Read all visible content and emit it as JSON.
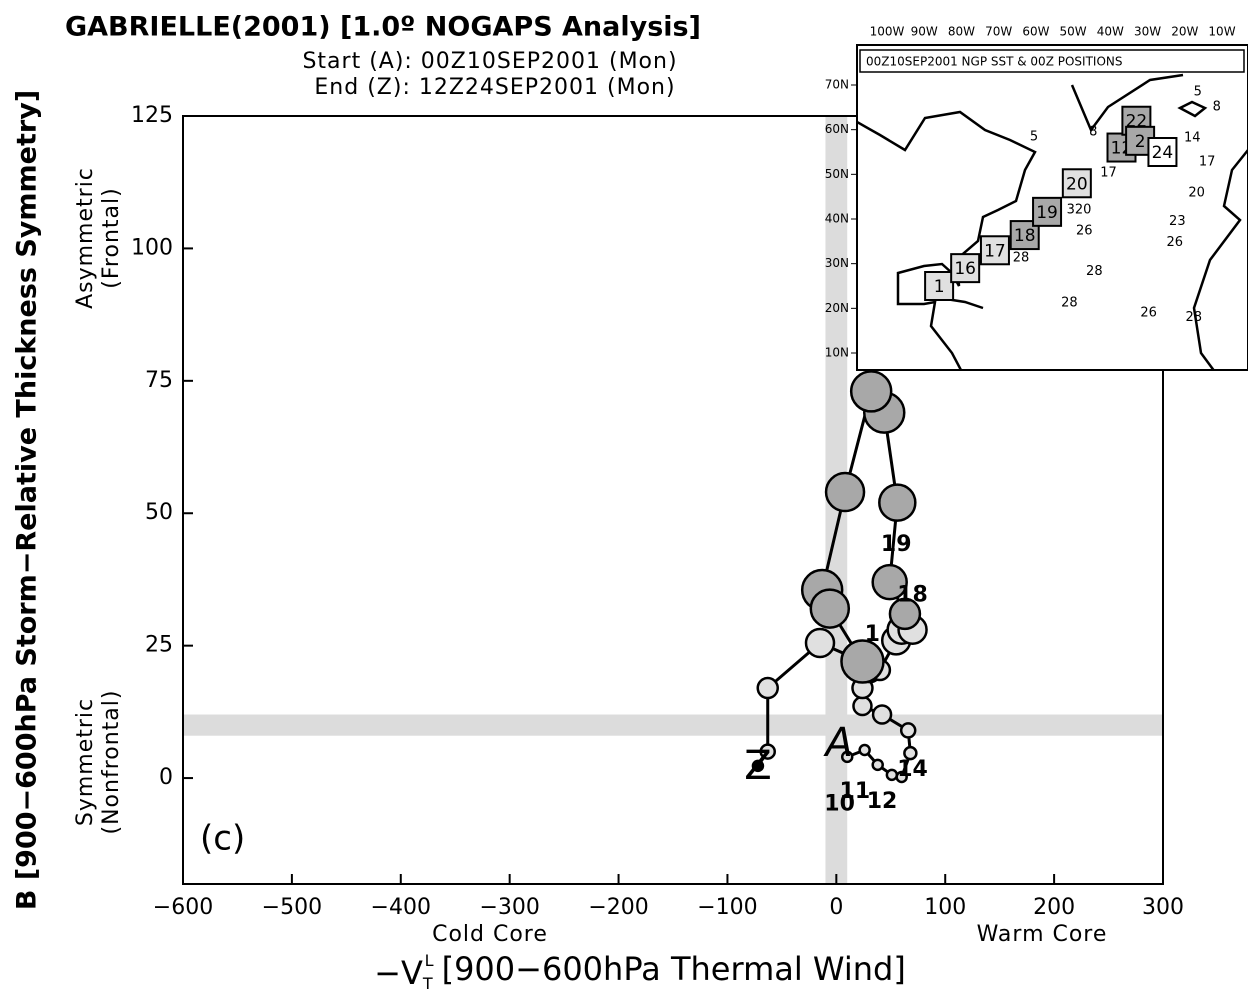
{
  "chart_data": {
    "type": "scatter",
    "title": "GABRIELLE(2001) [1.0º NOGAPS Analysis]",
    "start_label": "Start (A): 00Z10SEP2001 (Mon)",
    "end_label": "End (Z): 12Z24SEP2001 (Mon)",
    "y_label": "B [900−600hPa Storm−Relative Thickness Symmetry]",
    "x_label": {
      "symbol": "−V",
      "sub": "T",
      "sup": "L",
      "text": "[900−600hPa Thermal Wind]"
    },
    "x_left_note": "Cold Core",
    "x_right_note": "Warm Core",
    "y_top_note": [
      "Asymmetric",
      "(Frontal)"
    ],
    "y_bottom_note": [
      "Symmetric",
      "(Nonfrontal)"
    ],
    "panel_label": "(c)",
    "start_marker": "A",
    "end_marker": "Z",
    "xlim": [
      -600,
      300
    ],
    "ylim": [
      -20,
      125
    ],
    "xticks": [
      {
        "value": -600,
        "label": "−600"
      },
      {
        "value": -500,
        "label": "−500"
      },
      {
        "value": -400,
        "label": "−400"
      },
      {
        "value": -300,
        "label": "−300"
      },
      {
        "value": -200,
        "label": "−200"
      },
      {
        "value": -100,
        "label": "−100"
      },
      0,
      100,
      200,
      300
    ],
    "yticks": [
      0,
      25,
      50,
      75,
      100,
      125
    ],
    "bands": {
      "x": [
        -10,
        10
      ],
      "y": [
        8,
        12
      ],
      "color": "#dcdcdc"
    },
    "series": [
      {
        "name": "Gabrielle",
        "color": "#000",
        "x": [
          10,
          26,
          38,
          51,
          60,
          68,
          66,
          42,
          24,
          24,
          31,
          40,
          55,
          60,
          70,
          63,
          49,
          56,
          44,
          32,
          8,
          -13,
          -6,
          24,
          -15,
          -63,
          -63,
          -72
        ],
        "values": [
          4,
          5.3,
          2.5,
          0.6,
          0.2,
          4.7,
          9,
          12,
          13.6,
          17,
          20,
          20.4,
          26,
          28,
          28,
          31,
          37,
          52,
          69,
          73,
          54,
          35.5,
          32,
          22,
          25.5,
          17,
          5,
          2.3
        ],
        "sizes": [
          5,
          5,
          5,
          5,
          5,
          6,
          7,
          9,
          9,
          10,
          10,
          10,
          14,
          14,
          14,
          15,
          17,
          18,
          20,
          20,
          19,
          20,
          19,
          21,
          14,
          10,
          7,
          5
        ],
        "colors": [
          "#e0e0e0",
          "#e0e0e0",
          "#e0e0e0",
          "#e0e0e0",
          "#e0e0e0",
          "#e0e0e0",
          "#e0e0e0",
          "#e0e0e0",
          "#e0e0e0",
          "#e0e0e0",
          "#e0e0e0",
          "#e0e0e0",
          "#e0e0e0",
          "#e0e0e0",
          "#e0e0e0",
          "#a8a8a8",
          "#a8a8a8",
          "#a8a8a8",
          "#a8a8a8",
          "#a8a8a8",
          "#a8a8a8",
          "#a8a8a8",
          "#a8a8a8",
          "#a8a8a8",
          "#e0e0e0",
          "#e0e0e0",
          "#e0e0e0",
          "#000"
        ]
      }
    ],
    "day_labels": [
      {
        "text": "10",
        "x": 3,
        "y": -5
      },
      {
        "text": "11",
        "x": 17,
        "y": -2.6
      },
      {
        "text": "12",
        "x": 42,
        "y": -4.5
      },
      {
        "text": "14",
        "x": 70,
        "y": 1.5
      },
      {
        "text": "1",
        "x": 33,
        "y": 27
      },
      {
        "text": "18",
        "x": 70,
        "y": 34.5
      },
      {
        "text": "19",
        "x": 55,
        "y": 44
      }
    ],
    "inset": {
      "title": "00Z10SEP2001 NGP SST & 00Z POSITIONS",
      "lonticks": [
        {
          "value": -100,
          "label": "100W"
        },
        {
          "value": -90,
          "label": "90W"
        },
        {
          "value": -80,
          "label": "80W"
        },
        {
          "value": -70,
          "label": "70W"
        },
        {
          "value": -60,
          "label": "60W"
        },
        {
          "value": -50,
          "label": "50W"
        },
        {
          "value": -40,
          "label": "40W"
        },
        {
          "value": -30,
          "label": "30W"
        },
        {
          "value": -20,
          "label": "20W"
        },
        {
          "value": -10,
          "label": "10W"
        }
      ],
      "latticks": [
        {
          "value": 70,
          "label": "70N"
        },
        {
          "value": 60,
          "label": "60N"
        },
        {
          "value": 50,
          "label": "50N"
        },
        {
          "value": 40,
          "label": "40N"
        },
        {
          "value": 30,
          "label": "30N"
        },
        {
          "value": 20,
          "label": "20N"
        },
        {
          "value": 10,
          "label": "10N"
        }
      ],
      "positions": [
        {
          "day": "1",
          "lon": -86,
          "lat": 25,
          "fill": "#e0e0e0"
        },
        {
          "day": "16",
          "lon": -79,
          "lat": 29,
          "fill": "#e0e0e0"
        },
        {
          "day": "17",
          "lon": -71,
          "lat": 33,
          "fill": "#e0e0e0"
        },
        {
          "day": "18",
          "lon": -63,
          "lat": 36.4,
          "fill": "#a8a8a8"
        },
        {
          "day": "19",
          "lon": -57,
          "lat": 41.6,
          "fill": "#a8a8a8"
        },
        {
          "day": "20",
          "lon": -49,
          "lat": 48,
          "fill": "#e0e0e0"
        },
        {
          "day": "12",
          "lon": -37,
          "lat": 56,
          "fill": "#a8a8a8"
        },
        {
          "day": "22",
          "lon": -33,
          "lat": 62,
          "fill": "#a8a8a8"
        },
        {
          "day": "2",
          "lon": -32,
          "lat": 57.5,
          "fill": "#a8a8a8"
        },
        {
          "day": "24",
          "lon": -26,
          "lat": 55,
          "fill": "#fff"
        }
      ],
      "sst_labels": [
        {
          "text": "5",
          "lon": -16.5,
          "lat": 68.4
        },
        {
          "text": "8",
          "lon": -11.4,
          "lat": 65.1
        },
        {
          "text": "5",
          "lon": -60.5,
          "lat": 58.4
        },
        {
          "text": "8",
          "lon": -44.6,
          "lat": 59.5
        },
        {
          "text": "14",
          "lon": -18,
          "lat": 58.1
        },
        {
          "text": "17",
          "lon": -14,
          "lat": 52.8
        },
        {
          "text": "17",
          "lon": -40.5,
          "lat": 50.3
        },
        {
          "text": "20",
          "lon": -16.8,
          "lat": 45.8
        },
        {
          "text": "320",
          "lon": -48.4,
          "lat": 42
        },
        {
          "text": "23",
          "lon": -22,
          "lat": 39.4
        },
        {
          "text": "26",
          "lon": -22.7,
          "lat": 34.7
        },
        {
          "text": "26",
          "lon": -47,
          "lat": 37.3
        },
        {
          "text": "28",
          "lon": -64,
          "lat": 31.3
        },
        {
          "text": "28",
          "lon": -44.3,
          "lat": 28.2
        },
        {
          "text": "28",
          "lon": -51,
          "lat": 21.2
        },
        {
          "text": "26",
          "lon": -29.7,
          "lat": 19
        },
        {
          "text": "28",
          "lon": -17.6,
          "lat": 17.9
        }
      ]
    }
  }
}
